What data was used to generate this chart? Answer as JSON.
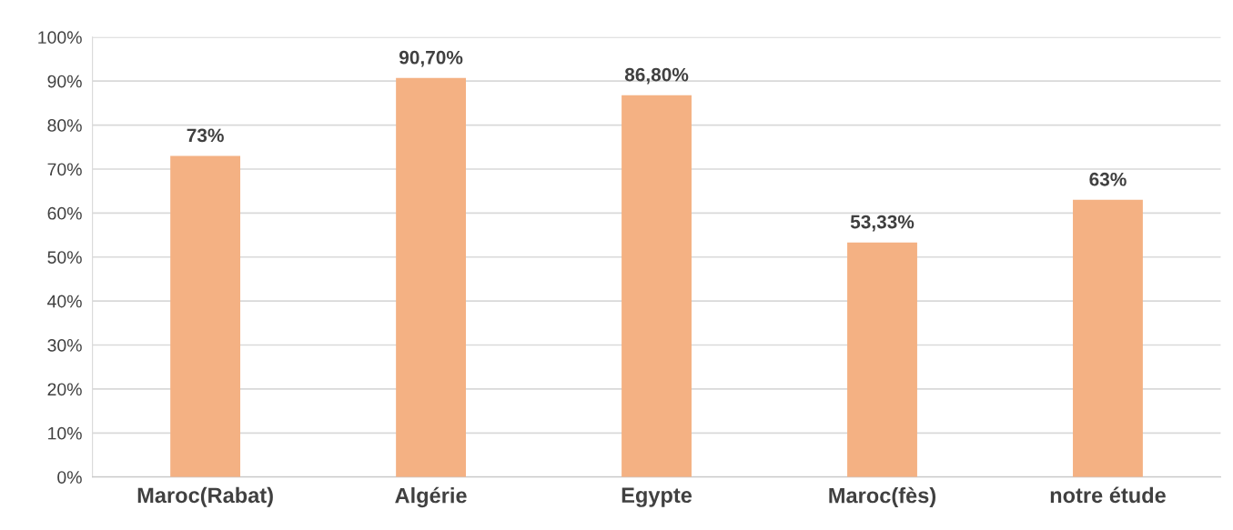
{
  "chart_data": {
    "type": "bar",
    "categories": [
      "Maroc(Rabat)",
      "Algérie",
      "Egypte",
      "Maroc(fès)",
      "notre étude"
    ],
    "values": [
      73,
      90.7,
      86.8,
      53.33,
      63
    ],
    "value_labels": [
      "73%",
      "90,70%",
      "86,80%",
      "53,33%",
      "63%"
    ],
    "color": "#f4b183",
    "ylim": [
      0,
      100
    ],
    "yticks": [
      {
        "value": 0,
        "label": "0%"
      },
      {
        "value": 10,
        "label": "10%"
      },
      {
        "value": 20,
        "label": "20%"
      },
      {
        "value": 30,
        "label": "30%"
      },
      {
        "value": 40,
        "label": "40%"
      },
      {
        "value": 50,
        "label": "50%"
      },
      {
        "value": 60,
        "label": "60%"
      },
      {
        "value": 70,
        "label": "70%"
      },
      {
        "value": 80,
        "label": "80%"
      },
      {
        "value": 90,
        "label": "90%"
      },
      {
        "value": 100,
        "label": "100%"
      }
    ],
    "grid": "y",
    "legend": false
  }
}
